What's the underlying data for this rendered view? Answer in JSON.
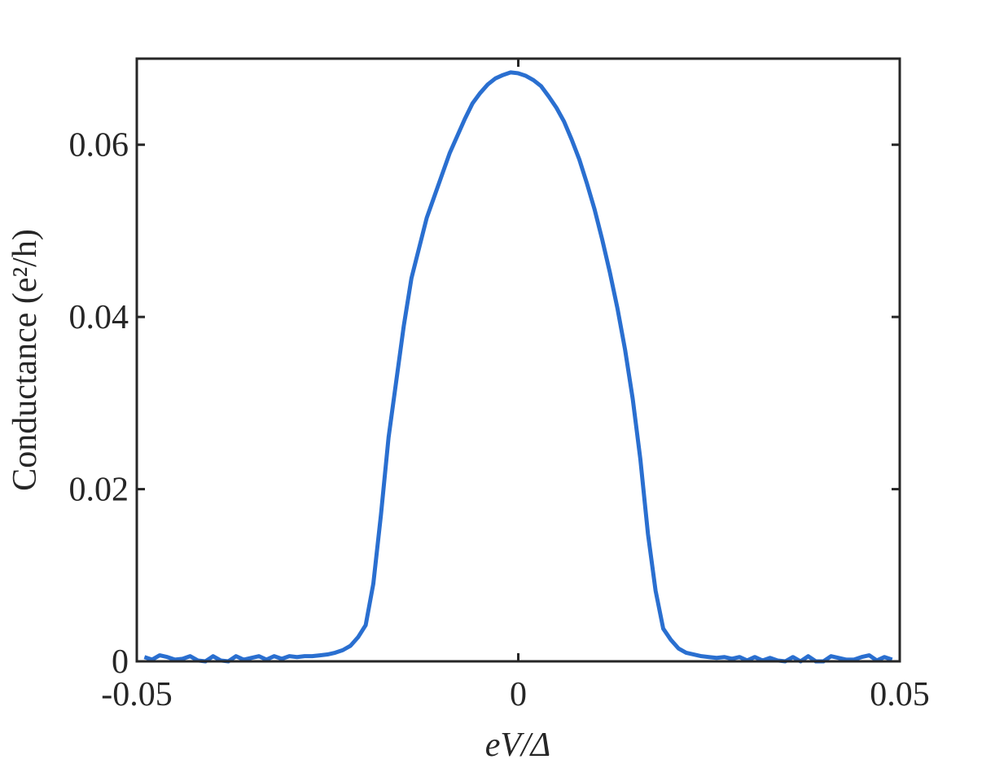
{
  "chart_data": {
    "type": "line",
    "xlabel": "eV/Δ",
    "ylabel": "Conductance (e²/h)",
    "xlim": [
      -0.05,
      0.05
    ],
    "xticks": [
      -0.05,
      0,
      0.05
    ],
    "ylim": [
      0,
      0.07
    ],
    "yticks": [
      0,
      0.02,
      0.04,
      0.06
    ],
    "grid": false,
    "x": [
      -0.049,
      -0.048,
      -0.047,
      -0.046,
      -0.045,
      -0.044,
      -0.043,
      -0.042,
      -0.041,
      -0.04,
      -0.039,
      -0.038,
      -0.037,
      -0.036,
      -0.035,
      -0.034,
      -0.033,
      -0.032,
      -0.031,
      -0.03,
      -0.029,
      -0.028,
      -0.027,
      -0.026,
      -0.025,
      -0.024,
      -0.023,
      -0.022,
      -0.021,
      -0.02,
      -0.019,
      -0.018,
      -0.017,
      -0.016,
      -0.015,
      -0.014,
      -0.013,
      -0.012,
      -0.011,
      -0.01,
      -0.009,
      -0.008,
      -0.007,
      -0.006,
      -0.005,
      -0.004,
      -0.003,
      -0.002,
      -0.001,
      0,
      0.001,
      0.002,
      0.003,
      0.004,
      0.005,
      0.006,
      0.007,
      0.008,
      0.009,
      0.01,
      0.011,
      0.012,
      0.013,
      0.014,
      0.015,
      0.016,
      0.017,
      0.018,
      0.019,
      0.02,
      0.021,
      0.022,
      0.023,
      0.024,
      0.025,
      0.026,
      0.027,
      0.028,
      0.029,
      0.03,
      0.031,
      0.032,
      0.033,
      0.034,
      0.035,
      0.036,
      0.037,
      0.038,
      0.039,
      0.04,
      0.041,
      0.042,
      0.043,
      0.044,
      0.045,
      0.046,
      0.047,
      0.048,
      0.049
    ],
    "series": [
      {
        "color": "#2a6fd0",
        "values": [
          0.0005,
          0.0002,
          0.0007,
          0.0005,
          0.0002,
          0.0003,
          0.0006,
          0.0001,
          0.0,
          0.0006,
          0.0001,
          0.0,
          0.0006,
          0.0002,
          0.0004,
          0.0006,
          0.0002,
          0.0006,
          0.0003,
          0.0006,
          0.0005,
          0.0006,
          0.0006,
          0.0007,
          0.0008,
          0.001,
          0.0013,
          0.0018,
          0.0028,
          0.0042,
          0.009,
          0.017,
          0.026,
          0.0325,
          0.039,
          0.0445,
          0.048,
          0.0515,
          0.054,
          0.0565,
          0.059,
          0.061,
          0.063,
          0.0648,
          0.066,
          0.067,
          0.0677,
          0.0681,
          0.0684,
          0.0683,
          0.068,
          0.0675,
          0.0668,
          0.0656,
          0.0643,
          0.0627,
          0.0606,
          0.0583,
          0.0555,
          0.0525,
          0.049,
          0.0452,
          0.041,
          0.0362,
          0.0305,
          0.0235,
          0.0148,
          0.0082,
          0.0038,
          0.0025,
          0.0015,
          0.001,
          0.0008,
          0.0006,
          0.0005,
          0.0004,
          0.0005,
          0.0003,
          0.0005,
          0.0001,
          0.0005,
          0.0001,
          0.0004,
          0.0001,
          0.0,
          0.0005,
          0.0,
          0.0006,
          0.0,
          0.0,
          0.0006,
          0.0004,
          0.0002,
          0.0002,
          0.0005,
          0.0007,
          0.0001,
          0.0005,
          0.0002
        ]
      }
    ]
  }
}
